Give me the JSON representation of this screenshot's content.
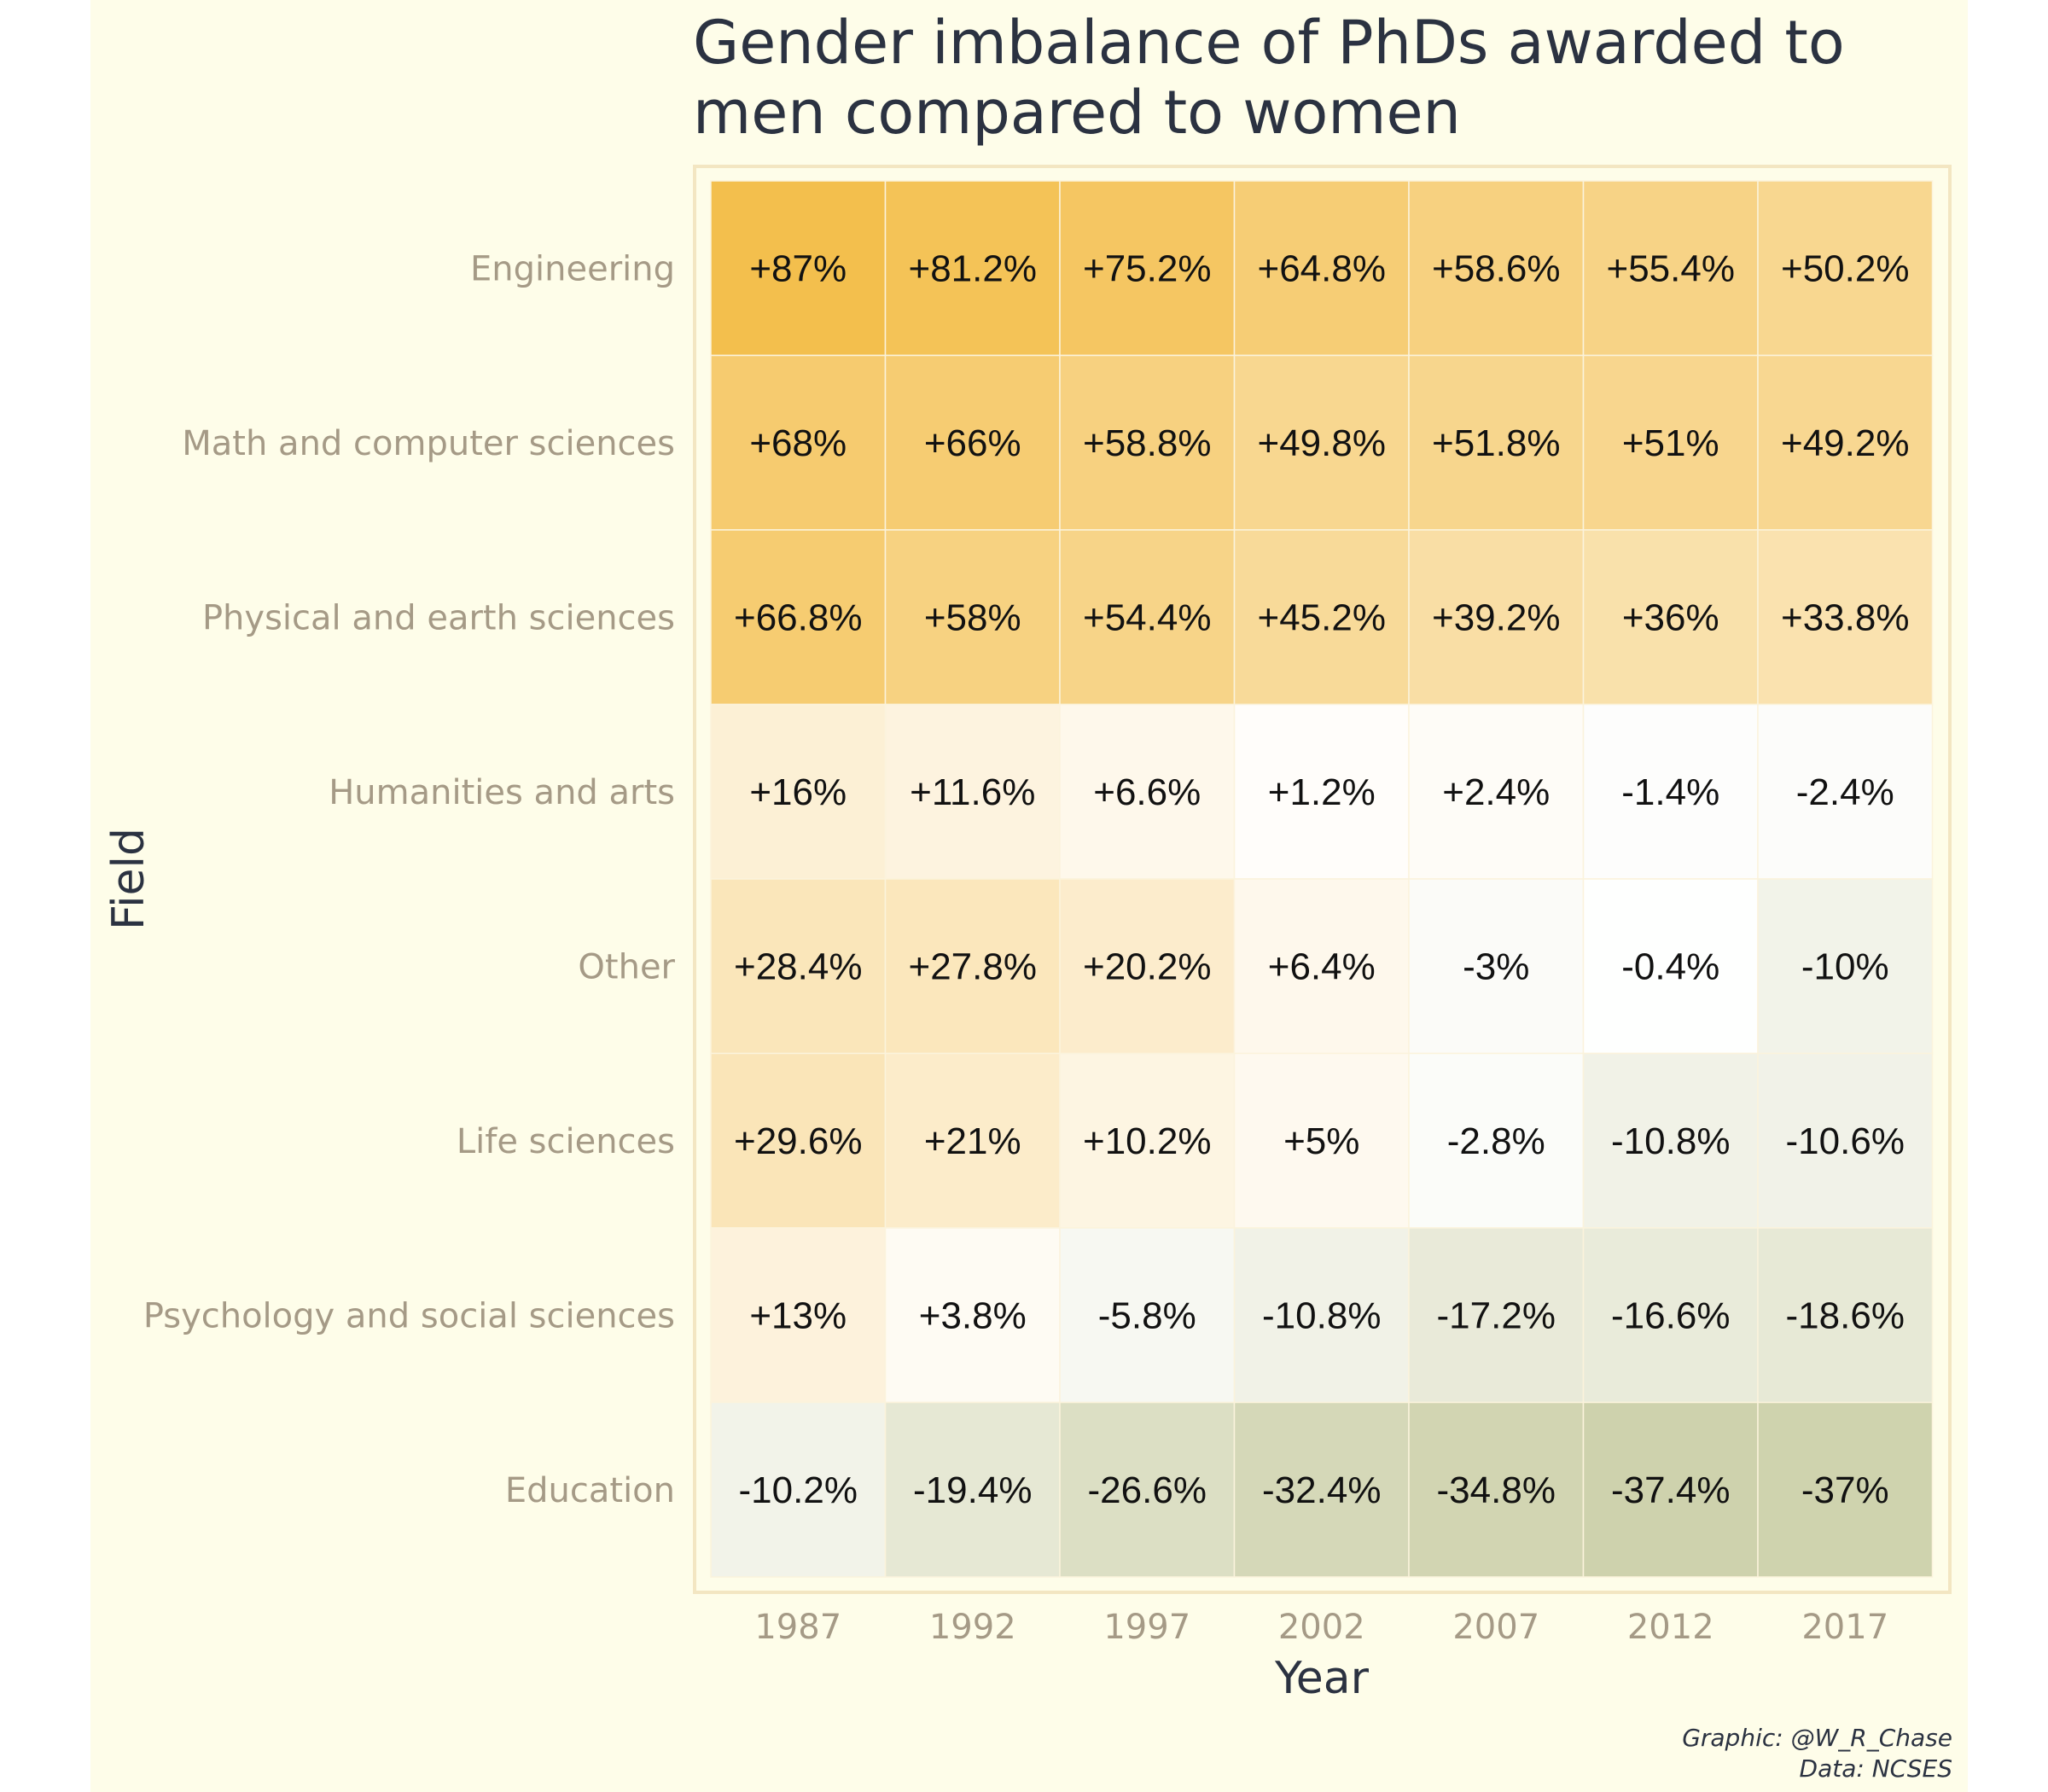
{
  "chart_data": {
    "type": "heatmap",
    "title_lines": [
      "Gender imbalance of PhDs awarded to",
      "men compared to women"
    ],
    "xlabel": "Year",
    "ylabel": "Field",
    "x": [
      "1987",
      "1992",
      "1997",
      "2002",
      "2007",
      "2012",
      "2017"
    ],
    "y": [
      "Engineering",
      "Math and computer sciences",
      "Physical and earth sciences",
      "Humanities and arts",
      "Other",
      "Life sciences",
      "Psychology and social sciences",
      "Education"
    ],
    "values": [
      [
        87,
        81.2,
        75.2,
        64.8,
        58.6,
        55.4,
        50.2
      ],
      [
        68,
        66,
        58.8,
        49.8,
        51.8,
        51,
        49.2
      ],
      [
        66.8,
        58,
        54.4,
        45.2,
        39.2,
        36,
        33.8
      ],
      [
        16,
        11.6,
        6.6,
        1.2,
        2.4,
        -1.4,
        -2.4
      ],
      [
        28.4,
        27.8,
        20.2,
        6.4,
        -3,
        -0.4,
        -10
      ],
      [
        29.6,
        21,
        10.2,
        5,
        -2.8,
        -10.8,
        -10.6
      ],
      [
        13,
        3.8,
        -5.8,
        -10.8,
        -17.2,
        -16.6,
        -18.6
      ],
      [
        -10.2,
        -19.4,
        -26.6,
        -32.4,
        -34.8,
        -37.4,
        -37
      ]
    ],
    "labels": [
      [
        "+87%",
        "+81.2%",
        "+75.2%",
        "+64.8%",
        "+58.6%",
        "+55.4%",
        "+50.2%"
      ],
      [
        "+68%",
        "+66%",
        "+58.8%",
        "+49.8%",
        "+51.8%",
        "+51%",
        "+49.2%"
      ],
      [
        "+66.8%",
        "+58%",
        "+54.4%",
        "+45.2%",
        "+39.2%",
        "+36%",
        "+33.8%"
      ],
      [
        "+16%",
        "+11.6%",
        "+6.6%",
        "+1.2%",
        "+2.4%",
        "-1.4%",
        "-2.4%"
      ],
      [
        "+28.4%",
        "+27.8%",
        "+20.2%",
        "+6.4%",
        "-3%",
        "-0.4%",
        "-10%"
      ],
      [
        "+29.6%",
        "+21%",
        "+10.2%",
        "+5%",
        "-2.8%",
        "-10.8%",
        "-10.6%"
      ],
      [
        "+13%",
        "+3.8%",
        "-5.8%",
        "-10.8%",
        "-17.2%",
        "-16.6%",
        "-18.6%"
      ],
      [
        "-10.2%",
        "-19.4%",
        "-26.6%",
        "-32.4%",
        "-34.8%",
        "-37.4%",
        "-37%"
      ]
    ],
    "colors": {
      "positive_high": "#f3bd48",
      "neutral": "#ffffff",
      "negative_low": "#cbcfa7",
      "scale_max": 90,
      "scale_min": -40
    },
    "caption_lines": [
      "Graphic: @W_R_Chase",
      "Data: NCSES"
    ]
  }
}
